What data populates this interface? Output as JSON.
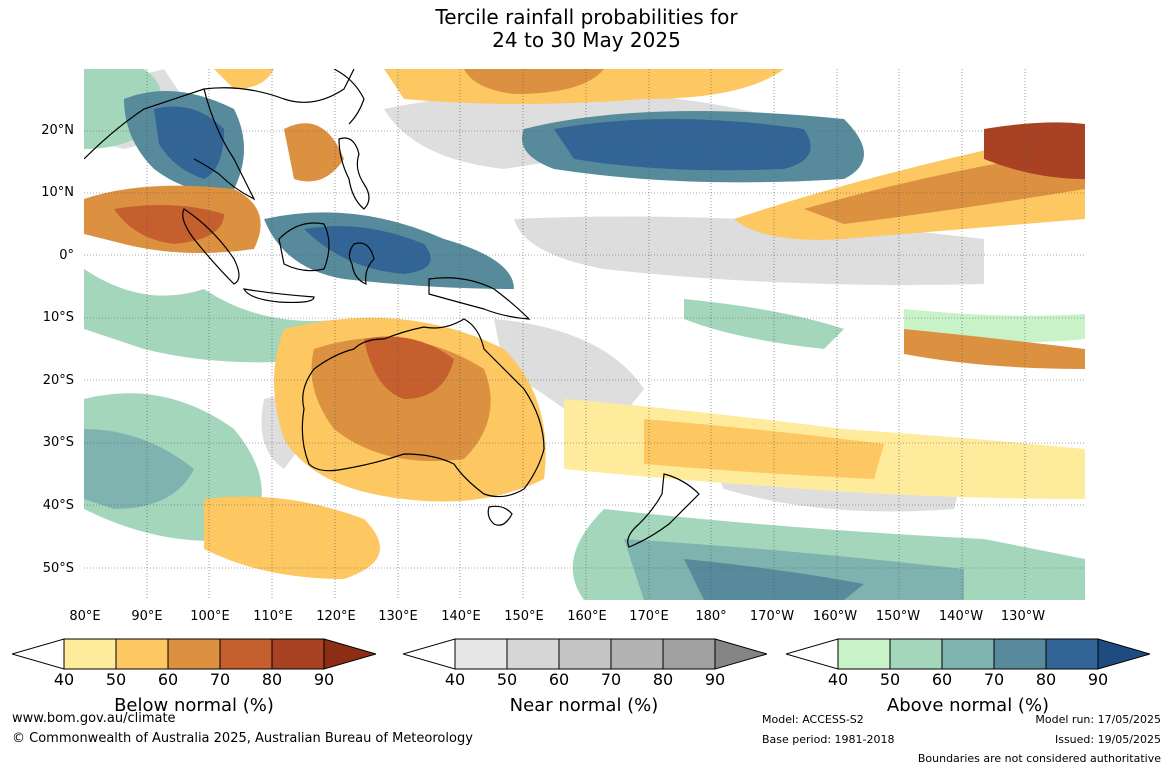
{
  "title_line1": "Tercile rainfall probabilities for",
  "title_line2": "24 to 30 May 2025",
  "lat_labels": [
    "20°N",
    "10°N",
    "0°",
    "10°S",
    "20°S",
    "30°S",
    "40°S",
    "50°S"
  ],
  "lon_labels": [
    "80°E",
    "90°E",
    "100°E",
    "110°E",
    "120°E",
    "130°E",
    "140°E",
    "150°E",
    "160°E",
    "170°E",
    "180°",
    "170°W",
    "160°W",
    "150°W",
    "140°W",
    "130°W"
  ],
  "colorbars": [
    {
      "title": "Below normal (%)",
      "ticks": [
        "40",
        "50",
        "60",
        "70",
        "80",
        "90"
      ],
      "colors": [
        "#ffeb9c",
        "#fdc862",
        "#dc9141",
        "#c55f2e",
        "#a84222",
        "#8c2d16"
      ]
    },
    {
      "title": "Near normal (%)",
      "ticks": [
        "40",
        "50",
        "60",
        "70",
        "80",
        "90"
      ],
      "colors": [
        "#e6e6e6",
        "#d6d6d6",
        "#c4c4c4",
        "#b3b3b3",
        "#a0a0a0",
        "#858585"
      ]
    },
    {
      "title": "Above normal (%)",
      "ticks": [
        "40",
        "50",
        "60",
        "70",
        "80",
        "90"
      ],
      "colors": [
        "#c8f2c8",
        "#a3d6bb",
        "#7fb3b0",
        "#578b9c",
        "#336496",
        "#1f4c80"
      ]
    }
  ],
  "footer": {
    "website": "www.bom.gov.au/climate",
    "copyright": "© Commonwealth of Australia 2025, Australian Bureau of Meteorology",
    "model": "Model: ACCESS-S2",
    "base_period": "Base period: 1981-2018",
    "model_run": "Model run: 17/05/2025",
    "issued": "Issued: 19/05/2025",
    "disclaimer": "Boundaries are not considered authoritative"
  }
}
